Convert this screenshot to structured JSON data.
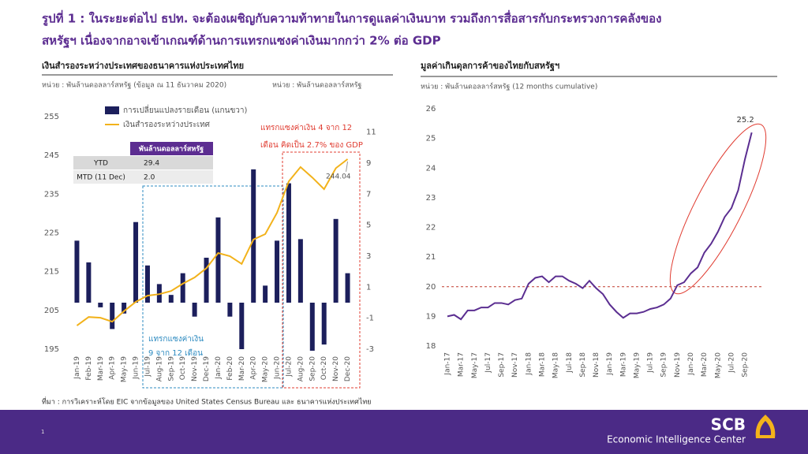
{
  "title": [
    "รูปที่ 1 : ในระยะต่อไป ธปท. จะต้องเผชิญกับความท้าทายในการดูแลค่าเงินบาท รวมถึงการสื่อสารกับกระทรวงการคลังของ",
    "สหรัฐฯ เนื่องจากอาจเข้าเกณฑ์ด้านการแทรกแซงค่าเงินมากกว่า 2% ต่อ GDP"
  ],
  "chart_data": [
    {
      "type": "combo",
      "title": "เงินสำรองระหว่างประเทศของธนาคารแห่งประเทศไทย",
      "y_unit": "หน่วย : พันล้านดอลลาร์สหรัฐ (ข้อมูล ณ 11 ธันวาคม 2020)",
      "y2_unit": "หน่วย : พันล้านดอลลาร์สหรัฐ",
      "categories": [
        "Jan-19",
        "Feb-19",
        "Mar-19",
        "Apr-19",
        "May-19",
        "Jun-19",
        "Jul-19",
        "Aug-19",
        "Sep-19",
        "Oct-19",
        "Nov-19",
        "Dec-19",
        "Jan-20",
        "Feb-20",
        "Mar-20",
        "Apr-20",
        "May-20",
        "Jun-20",
        "Jul-20",
        "Aug-20",
        "Sep-20",
        "Oct-20",
        "Nov-20",
        "Dec-20"
      ],
      "series": [
        {
          "name": "การเปลี่ยนแปลงรายเดือน (แกนขวา)",
          "type": "bar",
          "axis": "y2",
          "color": "#1c1f5c",
          "values": [
            4.0,
            2.6,
            -0.3,
            -1.7,
            -0.7,
            5.2,
            2.4,
            1.2,
            0.5,
            1.9,
            -0.9,
            2.9,
            5.5,
            -0.9,
            -3.0,
            8.6,
            1.1,
            4.0,
            7.7,
            4.1,
            -3.1,
            -2.7,
            5.4,
            1.9
          ]
        },
        {
          "name": "เงินสำรองระหว่างประเทศ",
          "type": "line",
          "color": "#f2b21b",
          "values": [
            201.1,
            203.3,
            203.1,
            202.1,
            204.8,
            207.2,
            208.8,
            209.2,
            210.0,
            211.9,
            213.5,
            215.9,
            219.8,
            219.0,
            217.0,
            223.3,
            224.7,
            230.2,
            238.3,
            242.0,
            239.3,
            236.3,
            241.7,
            244.04
          ]
        }
      ],
      "ylim": [
        195,
        255
      ],
      "yticks": [
        195,
        205,
        215,
        225,
        235,
        245,
        255
      ],
      "y2lim": [
        -3,
        12
      ],
      "y2ticks": [
        -3,
        -1,
        1,
        3,
        5,
        7,
        9,
        11
      ],
      "table": {
        "header": "พันล้านดอลลาร์สหรัฐ",
        "rows": [
          [
            "YTD",
            "29.4"
          ],
          [
            "MTD (11 Dec)",
            "2.0"
          ]
        ]
      },
      "annotations": [
        [
          "แทรกแซงค่าเงิน",
          "9 จาก 12 เดือน"
        ],
        [
          "แทรกแซงค่าเงิน 4 จาก 12",
          "เดือน คิดเป็น 2.7% ของ GDP"
        ]
      ]
    },
    {
      "type": "line",
      "title": "มูลค่าเกินดุลการค้าของไทยกับสหรัฐฯ",
      "y_unit": "หน่วย : พันล้านดอลลาร์สหรัฐ (12 months cumulative)",
      "categories": [
        "Jan-17",
        null,
        "Mar-17",
        null,
        "May-17",
        null,
        "Jul-17",
        null,
        "Sep-17",
        null,
        "Nov-17",
        null,
        "Jan-18",
        null,
        "Mar-18",
        null,
        "May-18",
        null,
        "Jul-18",
        null,
        "Sep-18",
        null,
        "Nov-18",
        null,
        "Jan-19",
        null,
        "Mar-19",
        null,
        "May-19",
        null,
        "Jul-19",
        null,
        "Sep-19",
        null,
        "Nov-19",
        null,
        "Jan-20",
        null,
        "Mar-20",
        null,
        "May-20",
        null,
        "Jul-20",
        null,
        "Sep-20",
        null
      ],
      "series": [
        {
          "name": "มูลค่าเกินดุลการค้า",
          "color": "#5b2e91",
          "values": [
            19.0,
            19.05,
            18.9,
            19.2,
            19.2,
            19.3,
            19.3,
            19.45,
            19.45,
            19.4,
            19.55,
            19.6,
            20.1,
            20.3,
            20.35,
            20.15,
            20.35,
            20.35,
            20.2,
            20.1,
            19.95,
            20.2,
            19.95,
            19.75,
            19.4,
            19.15,
            18.95,
            19.1,
            19.1,
            19.15,
            19.25,
            19.3,
            19.4,
            19.6,
            20.05,
            20.15,
            20.45,
            20.65,
            21.15,
            21.45,
            21.85,
            22.35,
            22.65,
            23.25,
            24.3,
            25.2
          ]
        }
      ],
      "ylim": [
        18,
        26
      ],
      "yticks": [
        18,
        19,
        20,
        21,
        22,
        23,
        24,
        25,
        26
      ],
      "reference_line": 20
    }
  ],
  "source": "ที่มา : การวิเคราะห์โดย EIC จากข้อมูลของ United States Census Bureau และ ธนาคารแห่งประเทศไทย",
  "footer": {
    "page": "1",
    "brand": "SCB",
    "unit": "Economic Intelligence Center"
  }
}
